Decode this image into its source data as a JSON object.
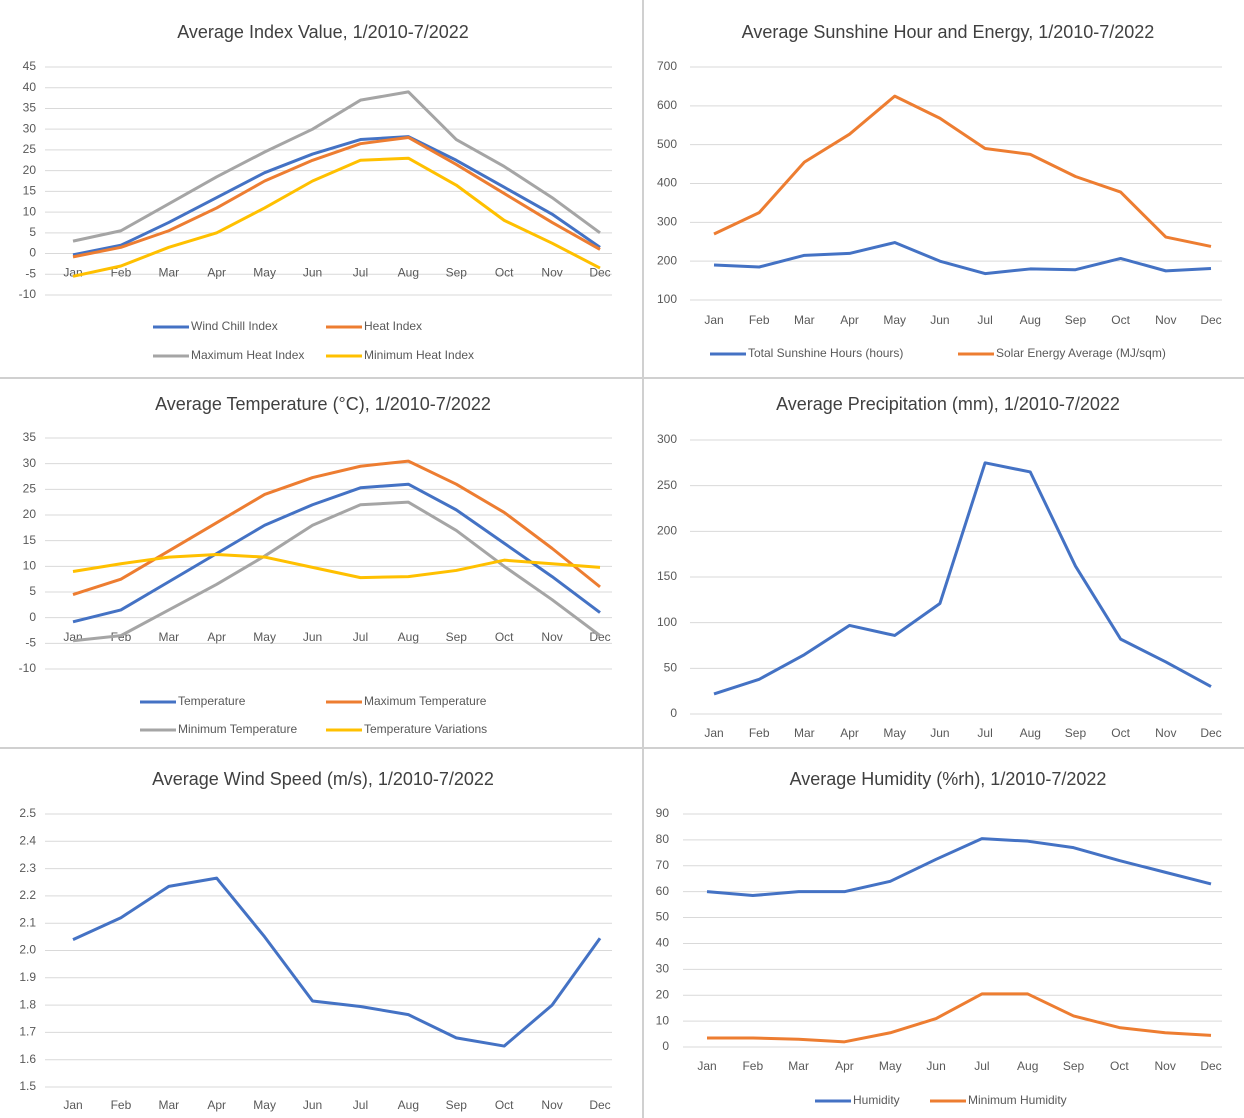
{
  "chart_data": [
    {
      "type": "line",
      "title": "Average Index Value, 1/2010-7/2022",
      "categories": [
        "Jan",
        "Feb",
        "Mar",
        "Apr",
        "May",
        "Jun",
        "Jul",
        "Aug",
        "Sep",
        "Oct",
        "Nov",
        "Dec"
      ],
      "ylim": [
        -10,
        45
      ],
      "yticks": [
        -10,
        -5,
        0,
        5,
        10,
        15,
        20,
        25,
        30,
        35,
        40,
        45
      ],
      "grid": true,
      "series": [
        {
          "name": "Wind Chill Index",
          "color": "#4472c4",
          "values": [
            -0.3,
            2,
            7.5,
            13.5,
            19.5,
            24,
            27.5,
            28.2,
            22.5,
            16,
            9.5,
            1.5
          ]
        },
        {
          "name": "Heat Index",
          "color": "#ed7d31",
          "values": [
            -0.8,
            1.5,
            5.5,
            11,
            17.5,
            22.5,
            26.5,
            28,
            21.5,
            14.5,
            7.5,
            1
          ]
        },
        {
          "name": "Maximum Heat Index",
          "color": "#a5a5a5",
          "values": [
            3,
            5.5,
            12,
            18.5,
            24.5,
            30,
            37,
            39,
            27.5,
            21,
            13.5,
            5
          ]
        },
        {
          "name": "Minimum Heat Index",
          "color": "#ffc000",
          "values": [
            -5.5,
            -3,
            1.5,
            5,
            11,
            17.5,
            22.5,
            23,
            16.5,
            8,
            2.5,
            -3.5
          ]
        }
      ]
    },
    {
      "type": "line",
      "title": "Average Sunshine Hour and Energy, 1/2010-7/2022",
      "categories": [
        "Jan",
        "Feb",
        "Mar",
        "Apr",
        "May",
        "Jun",
        "Jul",
        "Aug",
        "Sep",
        "Oct",
        "Nov",
        "Dec"
      ],
      "ylim": [
        100,
        700
      ],
      "yticks": [
        100,
        200,
        300,
        400,
        500,
        600,
        700
      ],
      "grid": true,
      "series": [
        {
          "name": "Total Sunshine Hours (hours)",
          "color": "#4472c4",
          "values": [
            190,
            185,
            215,
            220,
            248,
            200,
            168,
            180,
            178,
            207,
            175,
            181
          ]
        },
        {
          "name": "Solar Energy Average (MJ/sqm)",
          "color": "#ed7d31",
          "values": [
            270,
            325,
            455,
            527,
            625,
            568,
            490,
            475,
            418,
            378,
            262,
            238
          ]
        }
      ]
    },
    {
      "type": "line",
      "title": "Average Temperature (°C), 1/2010-7/2022",
      "categories": [
        "Jan",
        "Feb",
        "Mar",
        "Apr",
        "May",
        "Jun",
        "Jul",
        "Aug",
        "Sep",
        "Oct",
        "Nov",
        "Dec"
      ],
      "ylim": [
        -10,
        35
      ],
      "yticks": [
        -10,
        -5,
        0,
        5,
        10,
        15,
        20,
        25,
        30,
        35
      ],
      "grid": true,
      "series": [
        {
          "name": "Temperature",
          "color": "#4472c4",
          "values": [
            -0.8,
            1.5,
            7,
            12.5,
            18,
            22,
            25.3,
            26,
            21,
            14.5,
            8,
            1
          ]
        },
        {
          "name": "Maximum Temperature",
          "color": "#ed7d31",
          "values": [
            4.5,
            7.5,
            13,
            18.5,
            24,
            27.3,
            29.5,
            30.5,
            26,
            20.5,
            13.5,
            6
          ]
        },
        {
          "name": "Minimum Temperature",
          "color": "#a5a5a5",
          "values": [
            -4.5,
            -3.5,
            1.5,
            6.5,
            12,
            18,
            22,
            22.5,
            17,
            10,
            3.5,
            -3.5
          ]
        },
        {
          "name": "Temperature Variations",
          "color": "#ffc000",
          "values": [
            9,
            10.5,
            11.8,
            12.3,
            11.8,
            9.8,
            7.8,
            8,
            9.2,
            11.2,
            10.5,
            9.8
          ]
        }
      ]
    },
    {
      "type": "line",
      "title": "Average Precipitation (mm), 1/2010-7/2022",
      "categories": [
        "Jan",
        "Feb",
        "Mar",
        "Apr",
        "May",
        "Jun",
        "Jul",
        "Aug",
        "Sep",
        "Oct",
        "Nov",
        "Dec"
      ],
      "ylim": [
        0,
        300
      ],
      "yticks": [
        0,
        50,
        100,
        150,
        200,
        250,
        300
      ],
      "grid": true,
      "series": [
        {
          "color": "#4472c4",
          "values": [
            22,
            38,
            65,
            97,
            86,
            121,
            275,
            265,
            162,
            82,
            57,
            30
          ]
        }
      ]
    },
    {
      "type": "line",
      "title": "Average Wind Speed (m/s), 1/2010-7/2022",
      "categories": [
        "Jan",
        "Feb",
        "Mar",
        "Apr",
        "May",
        "Jun",
        "Jul",
        "Aug",
        "Sep",
        "Oct",
        "Nov",
        "Dec"
      ],
      "ylim": [
        1.5,
        2.5
      ],
      "yticks": [
        1.5,
        1.6,
        1.7,
        1.8,
        1.9,
        {
          "value": 2,
          "label": "2.0"
        },
        2.1,
        2.2,
        2.3,
        2.4,
        2.5
      ],
      "grid": true,
      "series": [
        {
          "color": "#4472c4",
          "values": [
            2.04,
            2.12,
            2.235,
            2.265,
            2.05,
            1.815,
            1.795,
            1.765,
            1.68,
            1.65,
            1.8,
            2.045
          ]
        }
      ]
    },
    {
      "type": "line",
      "title": "Average Humidity (%rh), 1/2010-7/2022",
      "categories": [
        "Jan",
        "Feb",
        "Mar",
        "Apr",
        "May",
        "Jun",
        "Jul",
        "Aug",
        "Sep",
        "Oct",
        "Nov",
        "Dec"
      ],
      "ylim": [
        0,
        90
      ],
      "yticks": [
        0,
        10,
        20,
        30,
        40,
        50,
        60,
        70,
        80,
        90
      ],
      "grid": true,
      "series": [
        {
          "name": "Humidity",
          "color": "#4472c4",
          "values": [
            60,
            58.5,
            60,
            60,
            64,
            72.5,
            80.5,
            79.5,
            77,
            72,
            67.5,
            63
          ]
        },
        {
          "name": "Minimum Humidity",
          "color": "#ed7d31",
          "values": [
            3.5,
            3.5,
            3,
            2,
            5.5,
            11,
            20.5,
            20.5,
            12,
            7.5,
            5.5,
            4.5
          ]
        }
      ]
    }
  ]
}
